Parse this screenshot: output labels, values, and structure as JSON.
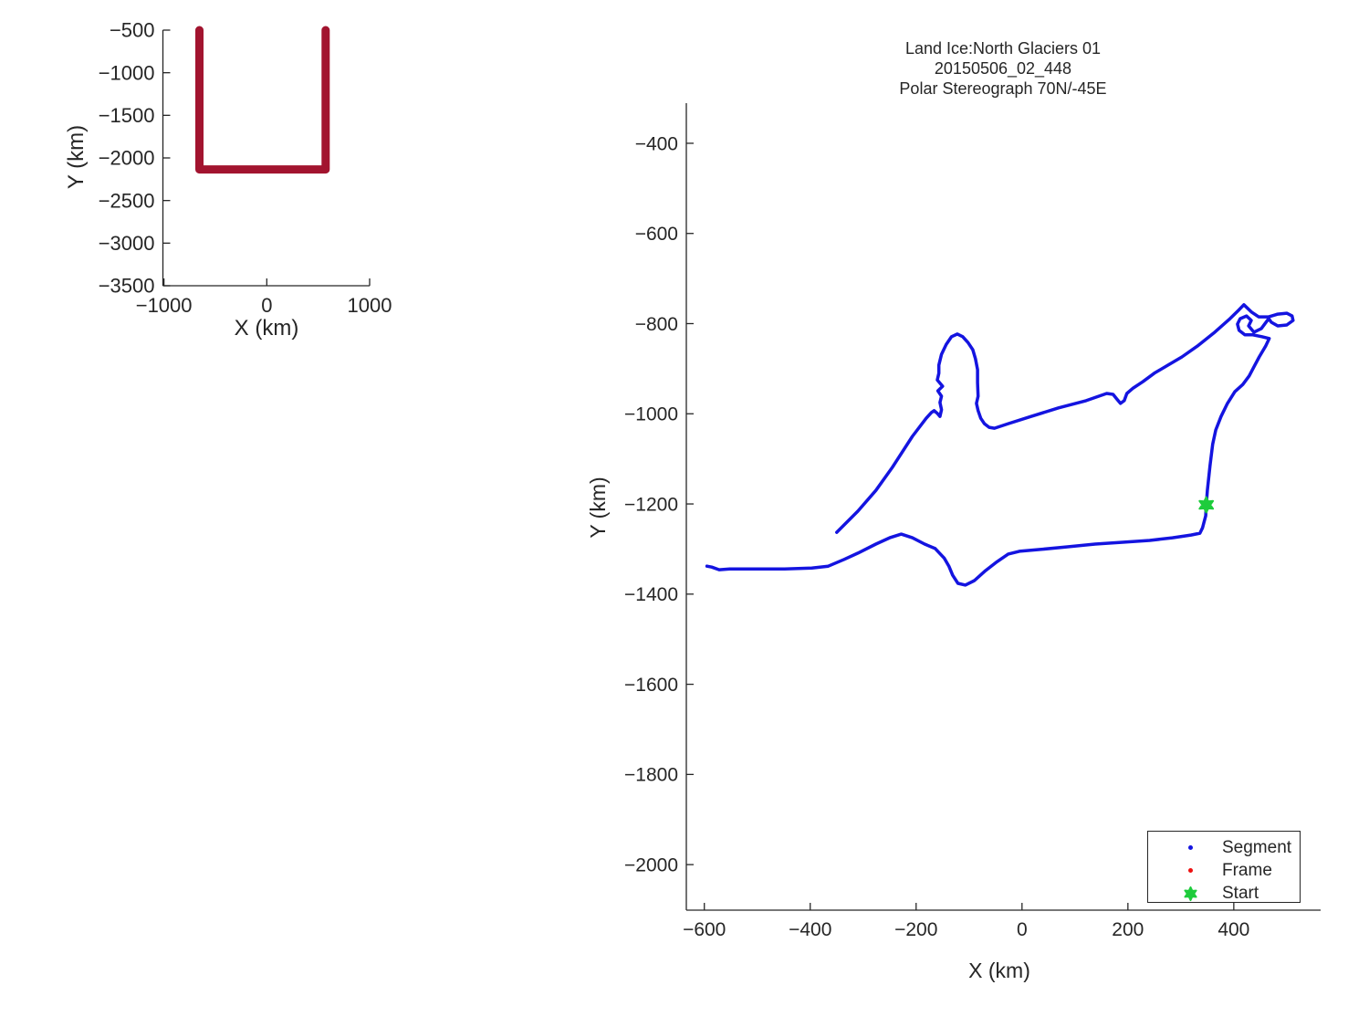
{
  "figure": {
    "background": "#FFFFFF",
    "text_color": "#262626",
    "axis_color": "#262626"
  },
  "chart_data": [
    {
      "type": "line",
      "name": "flight-track-overview",
      "title": [],
      "xlabel": "X (km)",
      "ylabel": "Y (km)",
      "xlim": [
        -1010,
        1000
      ],
      "ylim": [
        -3500,
        -500
      ],
      "xticks": [
        -1000,
        0,
        1000
      ],
      "yticks": [
        -500,
        -1000,
        -1500,
        -2000,
        -2500,
        -3000,
        -3500
      ],
      "grid": false,
      "legend_position": "none",
      "series": [
        {
          "name": "full-mission-track",
          "color": "#A2142F",
          "width": 9,
          "points": [
            [
              -655,
              -500
            ],
            [
              -655,
              -2135
            ],
            [
              572,
              -2135
            ],
            [
              572,
              -500
            ]
          ]
        }
      ],
      "markers": []
    },
    {
      "type": "line",
      "name": "segment-frame-map",
      "title": [
        "Land Ice:North Glaciers 01",
        "20150506_02_448",
        "Polar Stereograph 70N/-45E"
      ],
      "xlabel": "X (km)",
      "ylabel": "Y (km)",
      "xlim": [
        -634,
        564
      ],
      "ylim": [
        -2101,
        -311
      ],
      "xticks": [
        -600,
        -400,
        -200,
        0,
        200,
        400
      ],
      "yticks": [
        -400,
        -600,
        -800,
        -1000,
        -1200,
        -1400,
        -1600,
        -1800,
        -2000
      ],
      "grid": false,
      "legend_position": "lower right",
      "legend": [
        {
          "label": "Segment",
          "marker": "dot",
          "color": "#1414E0"
        },
        {
          "label": "Frame",
          "marker": "dot",
          "color": "#EE1111"
        },
        {
          "label": "Start",
          "marker": "star",
          "color": "#1ECC3C"
        }
      ],
      "series": [
        {
          "name": "segment-track",
          "color": "#1414E0",
          "width": 3.5,
          "points": [
            [
              -350,
              -1263
            ],
            [
              -310,
              -1216
            ],
            [
              -276,
              -1170
            ],
            [
              -245,
              -1119
            ],
            [
              -207,
              -1050
            ],
            [
              -181,
              -1010
            ],
            [
              -171,
              -997
            ],
            [
              -166,
              -993
            ],
            [
              -160,
              -999
            ],
            [
              -155,
              -1006
            ],
            [
              -152,
              -991
            ],
            [
              -155,
              -975
            ],
            [
              -152,
              -961
            ],
            [
              -159,
              -949
            ],
            [
              -150,
              -939
            ],
            [
              -160,
              -925
            ],
            [
              -157,
              -910
            ],
            [
              -157,
              -892
            ],
            [
              -152,
              -868
            ],
            [
              -143,
              -846
            ],
            [
              -133,
              -829
            ],
            [
              -122,
              -823
            ],
            [
              -112,
              -829
            ],
            [
              -102,
              -842
            ],
            [
              -93,
              -858
            ],
            [
              -88,
              -878
            ],
            [
              -84,
              -902
            ],
            [
              -84,
              -931
            ],
            [
              -83,
              -961
            ],
            [
              -86,
              -977
            ],
            [
              -83,
              -993
            ],
            [
              -78,
              -1010
            ],
            [
              -71,
              -1022
            ],
            [
              -62,
              -1030
            ],
            [
              -52,
              -1032
            ],
            [
              -26,
              -1022
            ],
            [
              17,
              -1006
            ],
            [
              69,
              -987
            ],
            [
              121,
              -971
            ],
            [
              160,
              -955
            ],
            [
              172,
              -957
            ],
            [
              179,
              -967
            ],
            [
              186,
              -977
            ],
            [
              193,
              -971
            ],
            [
              198,
              -955
            ],
            [
              210,
              -943
            ],
            [
              228,
              -929
            ],
            [
              250,
              -910
            ],
            [
              276,
              -892
            ],
            [
              302,
              -874
            ],
            [
              331,
              -850
            ],
            [
              362,
              -821
            ],
            [
              391,
              -791
            ],
            [
              410,
              -769
            ],
            [
              419,
              -758
            ],
            [
              434,
              -775
            ],
            [
              447,
              -785
            ],
            [
              466,
              -785
            ],
            [
              483,
              -779
            ],
            [
              500,
              -777
            ],
            [
              510,
              -783
            ],
            [
              512,
              -793
            ],
            [
              500,
              -803
            ],
            [
              483,
              -805
            ],
            [
              471,
              -797
            ],
            [
              466,
              -789
            ],
            [
              452,
              -811
            ],
            [
              438,
              -819
            ],
            [
              428,
              -805
            ],
            [
              433,
              -793
            ],
            [
              424,
              -783
            ],
            [
              412,
              -789
            ],
            [
              407,
              -801
            ],
            [
              410,
              -815
            ],
            [
              421,
              -825
            ],
            [
              436,
              -825
            ],
            [
              453,
              -829
            ],
            [
              467,
              -833
            ],
            [
              460,
              -850
            ],
            [
              448,
              -874
            ],
            [
              438,
              -896
            ],
            [
              429,
              -916
            ],
            [
              417,
              -935
            ],
            [
              402,
              -951
            ],
            [
              388,
              -977
            ],
            [
              376,
              -1006
            ],
            [
              366,
              -1036
            ],
            [
              360,
              -1068
            ],
            [
              355,
              -1115
            ],
            [
              350,
              -1170
            ],
            [
              348,
              -1202
            ],
            [
              347,
              -1226
            ],
            [
              341,
              -1253
            ],
            [
              336,
              -1265
            ],
            [
              319,
              -1269
            ],
            [
              284,
              -1275
            ],
            [
              241,
              -1281
            ],
            [
              190,
              -1285
            ],
            [
              138,
              -1289
            ],
            [
              86,
              -1295
            ],
            [
              34,
              -1301
            ],
            [
              -5,
              -1305
            ],
            [
              -26,
              -1311
            ],
            [
              -47,
              -1328
            ],
            [
              -69,
              -1348
            ],
            [
              -90,
              -1370
            ],
            [
              -107,
              -1380
            ],
            [
              -121,
              -1376
            ],
            [
              -131,
              -1358
            ],
            [
              -138,
              -1338
            ],
            [
              -147,
              -1320
            ],
            [
              -164,
              -1299
            ],
            [
              -184,
              -1289
            ],
            [
              -207,
              -1275
            ],
            [
              -228,
              -1267
            ],
            [
              -250,
              -1275
            ],
            [
              -276,
              -1289
            ],
            [
              -310,
              -1309
            ],
            [
              -336,
              -1323
            ],
            [
              -366,
              -1338
            ],
            [
              -397,
              -1342
            ],
            [
              -448,
              -1344
            ],
            [
              -500,
              -1344
            ],
            [
              -552,
              -1344
            ],
            [
              -572,
              -1346
            ],
            [
              -586,
              -1340
            ],
            [
              -595,
              -1338
            ]
          ]
        }
      ],
      "markers": [
        {
          "name": "start-marker",
          "type": "star",
          "color": "#1ECC3C",
          "x": 348,
          "y": -1202,
          "size": 8.5
        }
      ]
    }
  ]
}
